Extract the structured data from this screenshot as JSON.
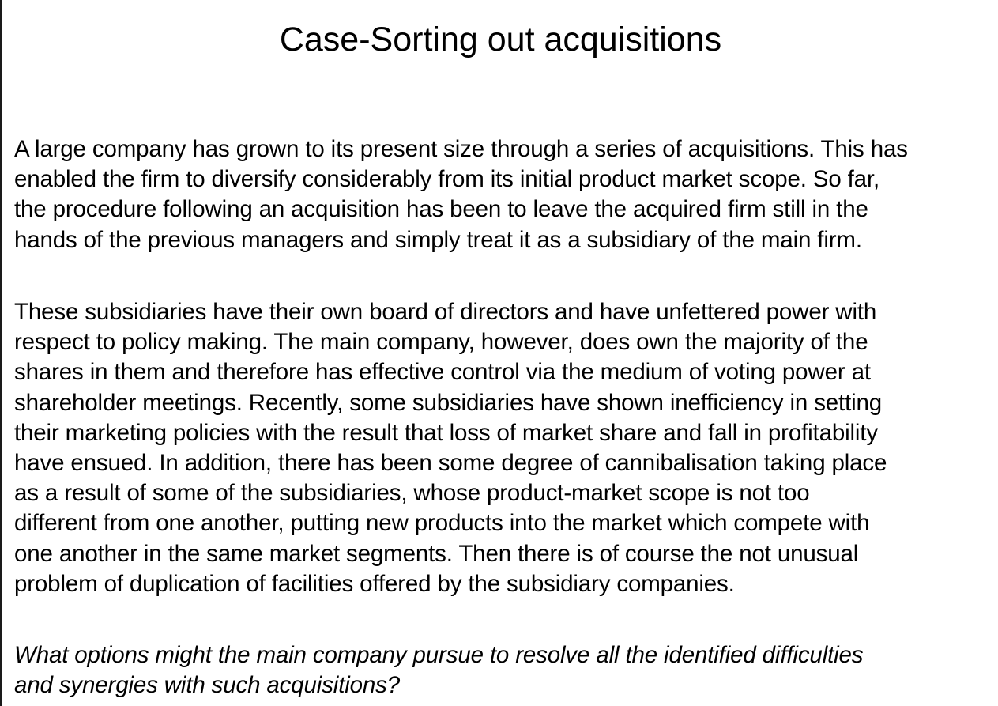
{
  "slide": {
    "title": "Case-Sorting out acquisitions",
    "paragraphs": [
      {
        "lines": [
          "A large company has grown to its present size through a series of acquisitions. This has",
          "enabled the firm to diversify considerably from its initial product market scope. So far,",
          "the procedure following an acquisition has been to leave the acquired firm still in the",
          "hands of the previous managers and simply treat it as a subsidiary of the main firm."
        ]
      },
      {
        "lines": [
          "These subsidiaries have their own board of directors and have unfettered power with",
          "respect to policy making. The main company, however, does own the majority of the",
          "shares in them and therefore has effective control via the medium of voting power at",
          "shareholder meetings. Recently, some subsidiaries have shown inefficiency in setting",
          "their marketing policies with the result that loss of market share and fall in profitability",
          "have ensued. In addition, there has been some degree of cannibalisation taking place",
          "as a result of some of the subsidiaries, whose product-market scope is not too",
          "different from one another, putting new products into the market which compete with",
          "one another in the same market segments. Then there is of course the not unusual",
          "problem of duplication of facilities offered by the subsidiary companies."
        ]
      },
      {
        "lines": [
          "What options might the main company pursue to resolve all the identified difficulties",
          "and synergies with such acquisitions?"
        ]
      }
    ]
  }
}
